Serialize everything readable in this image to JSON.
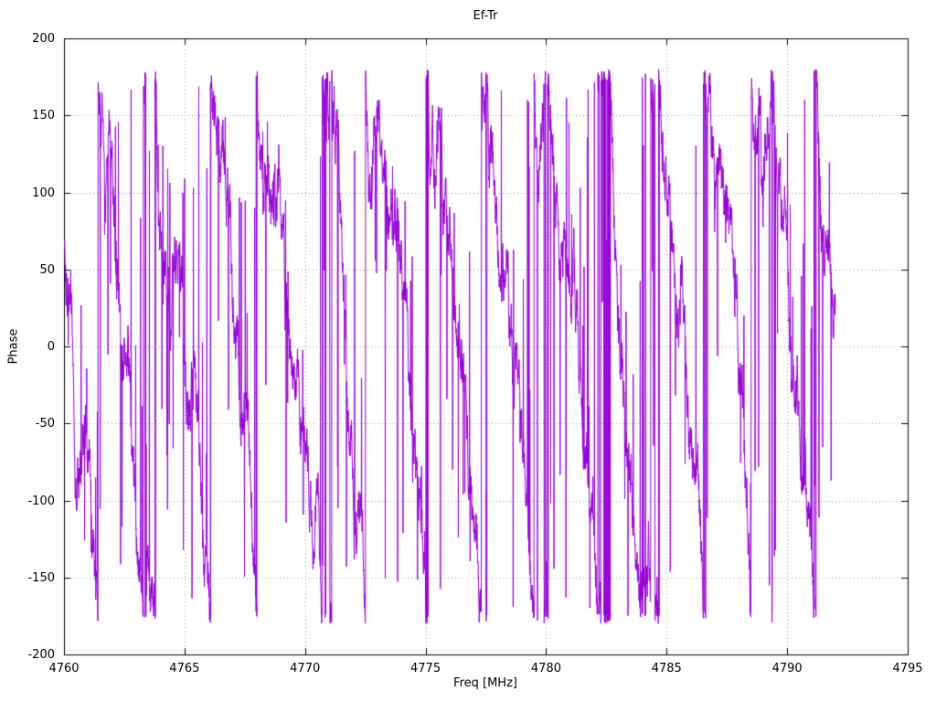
{
  "chart_data": {
    "type": "line",
    "title": "Ef-Tr",
    "xlabel": "Freq [MHz]",
    "ylabel": "Phase",
    "xlim": [
      4760,
      4795
    ],
    "ylim": [
      -200,
      200
    ],
    "xticks": [
      4760,
      4765,
      4770,
      4775,
      4780,
      4785,
      4790,
      4795
    ],
    "yticks": [
      -200,
      -150,
      -100,
      -50,
      0,
      50,
      100,
      150,
      200
    ],
    "grid": true,
    "grid_style": "dotted",
    "grid_color": "#9a9a9a",
    "border_color": "#000000",
    "legend": "none",
    "series": [
      {
        "name": "Ef-Tr",
        "color": "#9400d3",
        "description": "Measured transfer phase, wrapped to ±180 deg. Noisy sawtooth: phase descends ~-157 deg/MHz and wraps at ±180 about every 2.3 MHz, with heavy phase-noise spikes spanning the wrap boundary. Data spans 4760–4792 MHz; no data between 4792 and 4795 MHz.",
        "wrap_deg": 180,
        "slope_deg_per_mhz": -157,
        "wrap_period_mhz": 2.3,
        "synthesis": {
          "x_start": 4760,
          "x_end": 4792,
          "step": 0.008,
          "phase0": 60,
          "slope_deg_per_mhz": -157,
          "wrap_deg": 180,
          "walk_step": 26,
          "walk_decay": 0.985,
          "spike_prob": 0.055,
          "spike_amp": 300,
          "seed": 20
        }
      }
    ]
  }
}
